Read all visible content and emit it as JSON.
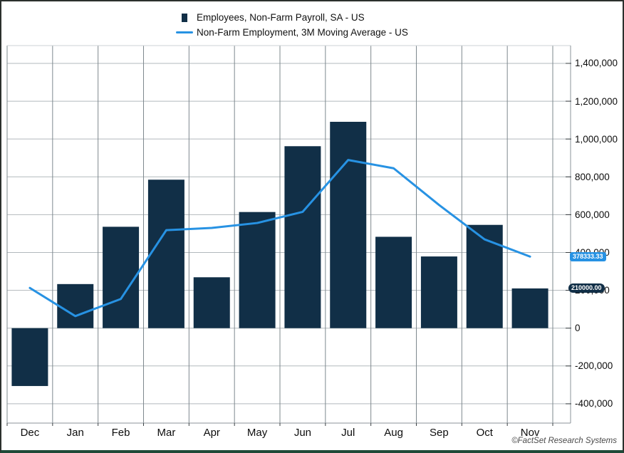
{
  "legend": {
    "bar_series": "Employees, Non-Farm Payroll, SA - US",
    "line_series": "Non-Farm Employment, 3M Moving Average - US"
  },
  "badges": {
    "line_value": "378333.33",
    "line_value_num": 378333.33,
    "bar_value": "210000.00",
    "bar_value_num": 210000
  },
  "footer": {
    "copyright": "©FactSet Research Systems"
  },
  "colors": {
    "bar": "#112f47",
    "line": "#2792e3",
    "h_grid": "#b2b9bd",
    "v_grid": "#7e888e",
    "frame_light": "#cdd2d4",
    "axis": "#8b9399",
    "tick": "#3a3f42"
  },
  "chart_data": {
    "type": "combo",
    "title": "",
    "categories": [
      "Dec",
      "Jan",
      "Feb",
      "Mar",
      "Apr",
      "May",
      "Jun",
      "Jul",
      "Aug",
      "Sep",
      "Oct",
      "Nov"
    ],
    "series": [
      {
        "name": "Employees, Non-Farm Payroll, SA - US",
        "type": "bar",
        "values": [
          -306000,
          233000,
          536000,
          785000,
          269000,
          614000,
          962000,
          1091000,
          483000,
          379000,
          546000,
          210000
        ]
      },
      {
        "name": "Non-Farm Employment, 3M Moving Average - US",
        "type": "line",
        "values": [
          212666.67,
          63666.67,
          154333.33,
          518000,
          530000,
          556000,
          615000,
          889000,
          845333.33,
          651000,
          469333.33,
          378333.33
        ]
      }
    ],
    "y_axis": {
      "position": "right",
      "range": [
        -502000,
        1494000
      ],
      "tick_values": [
        1400000,
        1200000,
        1000000,
        800000,
        600000,
        400000,
        200000,
        0,
        -200000,
        -400000
      ],
      "tick_labels": [
        "1,400,000",
        "1,200,000",
        "1,000,000",
        "800,000",
        "600,000",
        "400,000",
        "200,000",
        "0",
        "-200,000",
        "-400,000"
      ]
    },
    "grid": true,
    "legend_position": "top"
  }
}
